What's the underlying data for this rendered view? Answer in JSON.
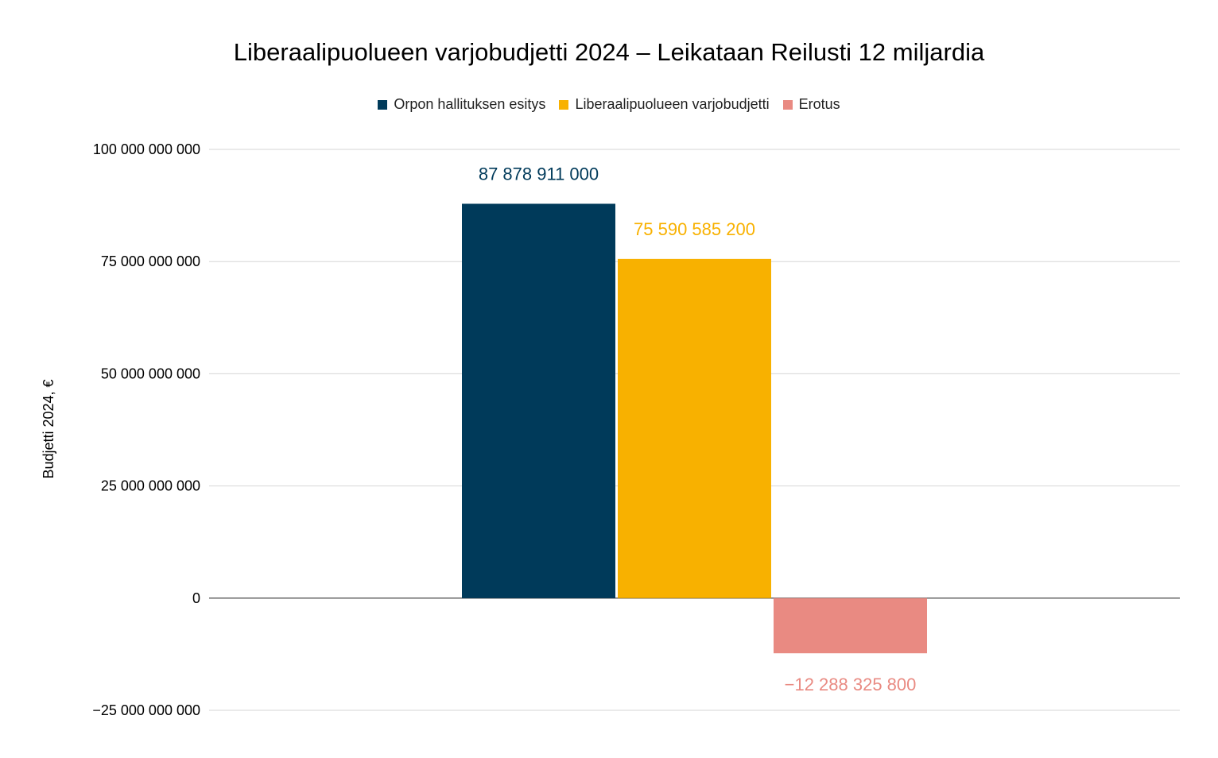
{
  "chart_data": {
    "type": "bar",
    "title": "Liberaalipuolueen varjobudjetti 2024 – Leikataan Reilusti 12 miljardia",
    "ylabel": "Budjetti 2024, €",
    "xlabel": "",
    "categories": [
      ""
    ],
    "ylim": [
      -25000000000,
      100000000000
    ],
    "yticks": [
      100000000000,
      75000000000,
      50000000000,
      25000000000,
      0,
      -25000000000
    ],
    "ytick_labels": [
      "100 000 000 000",
      "75 000 000 000",
      "50 000 000 000",
      "25 000 000 000",
      "0",
      "−25 000 000 000"
    ],
    "grid": true,
    "legend_position": "top",
    "series": [
      {
        "name": "Orpon hallituksen esitys",
        "values": [
          87878911000
        ],
        "label": "87 878 911 000",
        "color": "#003a5a"
      },
      {
        "name": "Liberaalipuolueen varjobudjetti",
        "values": [
          75590585200
        ],
        "label": "75 590 585 200",
        "color": "#f8b100"
      },
      {
        "name": "Erotus",
        "values": [
          -12288325800
        ],
        "label": "−12 288 325 800",
        "color": "#e98a82"
      }
    ]
  }
}
